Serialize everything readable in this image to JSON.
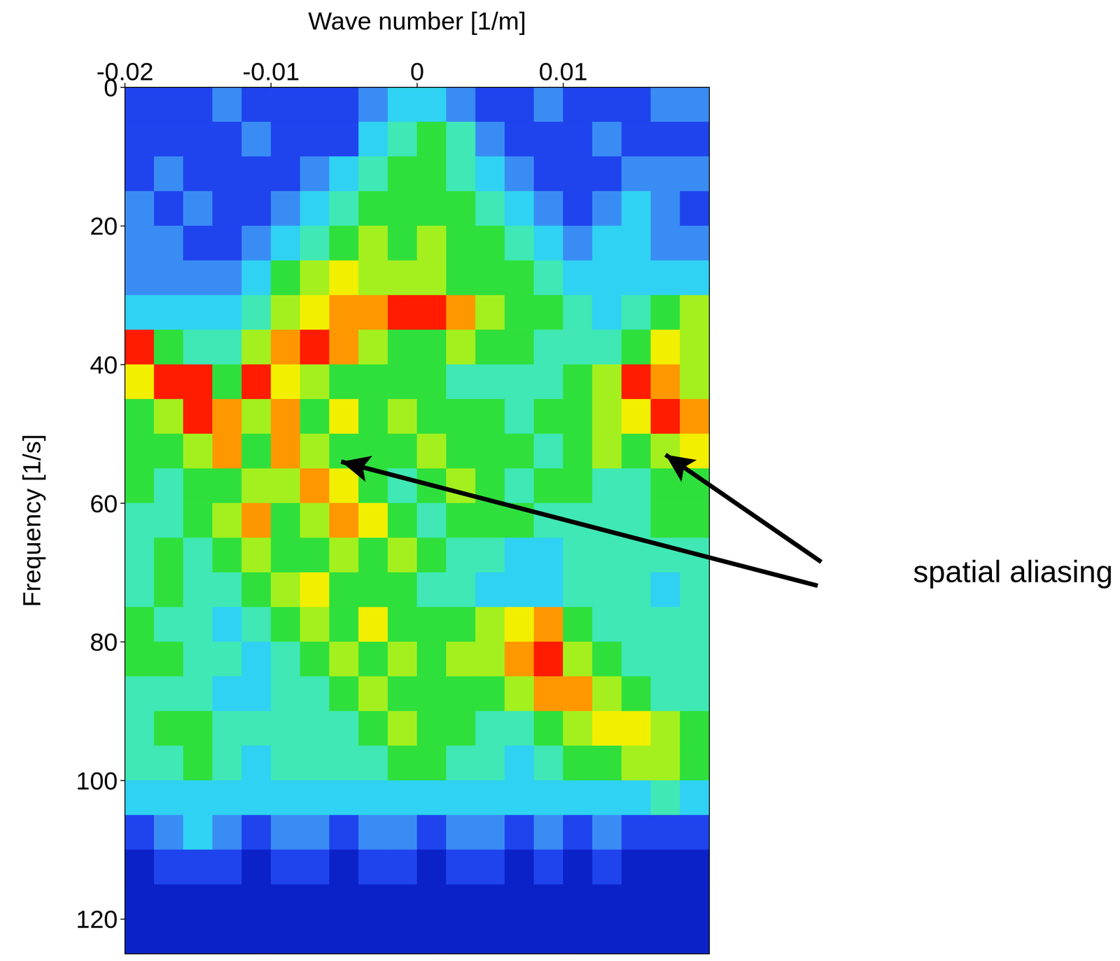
{
  "chart_data": {
    "type": "heatmap",
    "xlabel": "Wave number [1/m]",
    "ylabel": "Frequency [1/s]",
    "xlim": [
      -0.02,
      0.02
    ],
    "ylim": [
      0,
      125
    ],
    "xticks": [
      -0.02,
      -0.01,
      0,
      0.01
    ],
    "yticks": [
      0,
      20,
      40,
      60,
      80,
      100,
      120
    ],
    "x_edges": [
      -0.02,
      -0.018,
      -0.016,
      -0.014,
      -0.012,
      -0.01,
      -0.008,
      -0.006,
      -0.004,
      -0.002,
      0,
      0.002,
      0.004,
      0.006,
      0.008,
      0.01,
      0.012,
      0.014,
      0.016,
      0.018,
      0.02
    ],
    "y_edges": [
      0,
      5,
      10,
      15,
      20,
      25,
      30,
      35,
      40,
      45,
      50,
      55,
      60,
      65,
      70,
      75,
      80,
      85,
      90,
      95,
      100,
      105,
      110,
      115,
      120,
      125
    ],
    "cells": [
      [
        1,
        1,
        1,
        2,
        1,
        1,
        1,
        1,
        2,
        3,
        3,
        2,
        1,
        1,
        2,
        1,
        1,
        1,
        2,
        2
      ],
      [
        1,
        1,
        1,
        1,
        2,
        1,
        1,
        1,
        3,
        4,
        5,
        4,
        2,
        1,
        1,
        1,
        2,
        1,
        1,
        1
      ],
      [
        1,
        2,
        1,
        1,
        1,
        1,
        2,
        3,
        4,
        5,
        5,
        4,
        3,
        2,
        1,
        1,
        1,
        2,
        2,
        2
      ],
      [
        2,
        1,
        2,
        1,
        1,
        2,
        3,
        4,
        5,
        5,
        5,
        5,
        4,
        3,
        2,
        1,
        2,
        3,
        2,
        1
      ],
      [
        2,
        2,
        1,
        1,
        2,
        3,
        4,
        5,
        6,
        5,
        6,
        5,
        5,
        4,
        3,
        2,
        3,
        3,
        2,
        2
      ],
      [
        2,
        2,
        2,
        2,
        3,
        5,
        6,
        7,
        6,
        6,
        6,
        5,
        5,
        5,
        4,
        3,
        3,
        3,
        3,
        3
      ],
      [
        3,
        3,
        3,
        3,
        4,
        6,
        7,
        8,
        8,
        9,
        9,
        8,
        6,
        5,
        5,
        4,
        3,
        4,
        5,
        6
      ],
      [
        9,
        5,
        4,
        4,
        6,
        8,
        9,
        8,
        6,
        5,
        5,
        6,
        5,
        5,
        4,
        4,
        4,
        5,
        7,
        6
      ],
      [
        7,
        9,
        9,
        5,
        9,
        7,
        6,
        5,
        5,
        5,
        5,
        4,
        4,
        4,
        4,
        5,
        6,
        9,
        8,
        6
      ],
      [
        5,
        6,
        9,
        8,
        6,
        8,
        5,
        7,
        5,
        6,
        5,
        5,
        5,
        4,
        5,
        5,
        6,
        7,
        9,
        8
      ],
      [
        5,
        5,
        6,
        8,
        5,
        8,
        6,
        5,
        5,
        5,
        6,
        5,
        5,
        5,
        4,
        5,
        6,
        5,
        6,
        7
      ],
      [
        5,
        4,
        5,
        5,
        6,
        6,
        8,
        7,
        5,
        4,
        5,
        6,
        5,
        4,
        5,
        5,
        4,
        4,
        5,
        5
      ],
      [
        4,
        4,
        5,
        6,
        8,
        5,
        6,
        8,
        7,
        5,
        4,
        5,
        5,
        5,
        4,
        4,
        4,
        4,
        5,
        5
      ],
      [
        4,
        5,
        4,
        5,
        6,
        5,
        5,
        6,
        5,
        6,
        5,
        4,
        4,
        3,
        3,
        4,
        4,
        4,
        4,
        4
      ],
      [
        4,
        5,
        4,
        4,
        5,
        6,
        7,
        5,
        5,
        5,
        4,
        4,
        3,
        3,
        3,
        4,
        4,
        4,
        3,
        4
      ],
      [
        5,
        4,
        4,
        3,
        4,
        5,
        6,
        5,
        7,
        5,
        5,
        5,
        6,
        7,
        8,
        5,
        4,
        4,
        4,
        4
      ],
      [
        5,
        5,
        4,
        4,
        3,
        4,
        5,
        6,
        5,
        6,
        5,
        6,
        6,
        8,
        9,
        6,
        5,
        4,
        4,
        4
      ],
      [
        4,
        4,
        4,
        3,
        3,
        4,
        4,
        5,
        6,
        5,
        5,
        5,
        5,
        6,
        8,
        8,
        6,
        5,
        4,
        4
      ],
      [
        4,
        5,
        5,
        4,
        4,
        4,
        4,
        4,
        5,
        6,
        5,
        5,
        4,
        4,
        5,
        6,
        7,
        7,
        6,
        5
      ],
      [
        4,
        4,
        5,
        4,
        3,
        4,
        4,
        4,
        4,
        5,
        5,
        4,
        4,
        3,
        4,
        5,
        5,
        6,
        6,
        5
      ],
      [
        3,
        3,
        3,
        3,
        3,
        3,
        3,
        3,
        3,
        3,
        3,
        3,
        3,
        3,
        3,
        3,
        3,
        3,
        4,
        3
      ],
      [
        1,
        2,
        3,
        2,
        1,
        2,
        2,
        1,
        2,
        2,
        1,
        2,
        2,
        1,
        2,
        1,
        2,
        1,
        1,
        1
      ],
      [
        0,
        1,
        1,
        1,
        0,
        1,
        1,
        0,
        1,
        1,
        0,
        1,
        1,
        0,
        1,
        0,
        1,
        0,
        0,
        0
      ],
      [
        0,
        0,
        0,
        0,
        0,
        0,
        0,
        0,
        0,
        0,
        0,
        0,
        0,
        0,
        0,
        0,
        0,
        0,
        0,
        0
      ],
      [
        0,
        0,
        0,
        0,
        0,
        0,
        0,
        0,
        0,
        0,
        0,
        0,
        0,
        0,
        0,
        0,
        0,
        0,
        0,
        0
      ]
    ],
    "annotations": [
      {
        "text": "spatial aliasing",
        "points": [
          {
            "x": -0.0052,
            "y": 54
          },
          {
            "x": 0.017,
            "y": 53
          }
        ]
      }
    ]
  }
}
